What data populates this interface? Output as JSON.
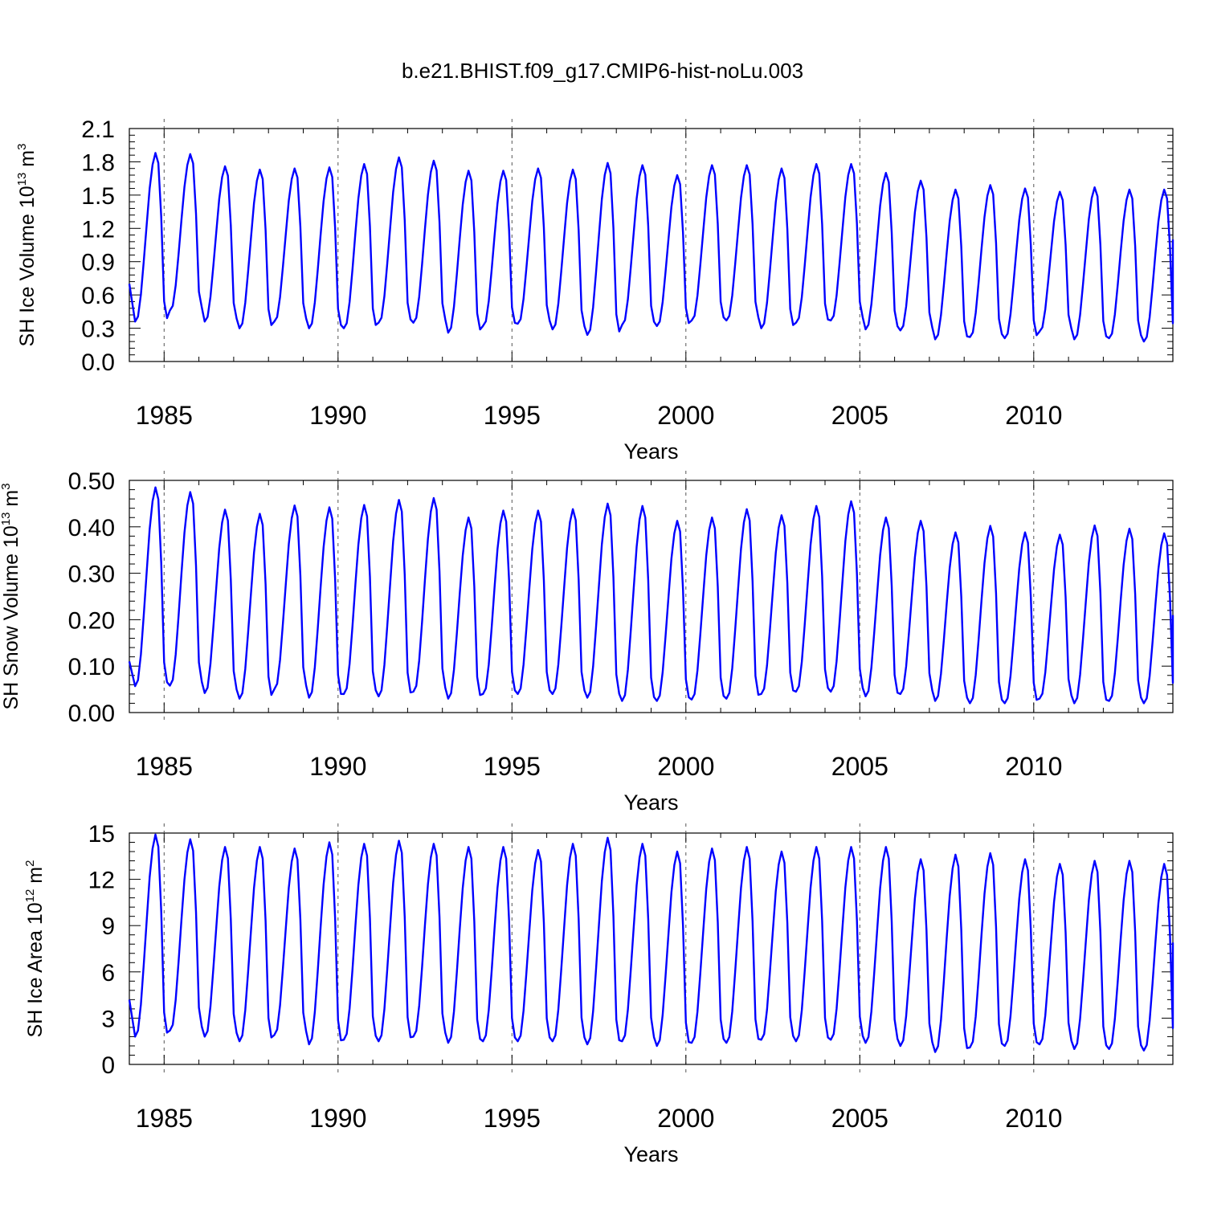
{
  "figure": {
    "title": "b.e21.BHIST.f09_g17.CMIP6-hist-noLu.003"
  },
  "chart_data": [
    {
      "type": "line",
      "title": "",
      "xlabel": "Years",
      "ylabel": "SH Ice Volume 10",
      "ylabel_sup": "13",
      "ylabel_unit": " m",
      "ylabel_unit_sup": "3",
      "xlim": [
        1984.0,
        2014.0
      ],
      "ylim": [
        0.0,
        2.1
      ],
      "xticks": [
        1985,
        1990,
        1995,
        2000,
        2005,
        2010
      ],
      "yticks": [
        "0.0",
        "0.3",
        "0.6",
        "0.9",
        "1.2",
        "1.5",
        "1.8",
        "2.1"
      ],
      "grid": false,
      "x_reference_lines": [
        1985,
        1990,
        1995,
        2000,
        2005,
        2010
      ],
      "series": [
        {
          "color": "#0000ff",
          "start_year": 1984.0,
          "step": 0.08333,
          "annual_max": [
            1.88,
            1.87,
            1.76,
            1.73,
            1.74,
            1.75,
            1.78,
            1.84,
            1.81,
            1.72,
            1.72,
            1.74,
            1.73,
            1.79,
            1.77,
            1.68,
            1.77,
            1.77,
            1.74,
            1.78,
            1.78,
            1.7,
            1.63,
            1.55,
            1.59,
            1.56,
            1.53,
            1.57,
            1.55,
            1.55
          ],
          "annual_min": [
            0.36,
            0.46,
            0.36,
            0.3,
            0.36,
            0.3,
            0.3,
            0.35,
            0.35,
            0.26,
            0.32,
            0.34,
            0.29,
            0.24,
            0.33,
            0.32,
            0.37,
            0.37,
            0.3,
            0.35,
            0.37,
            0.29,
            0.28,
            0.2,
            0.22,
            0.21,
            0.27,
            0.2,
            0.21,
            0.18
          ],
          "start_value": 0.7,
          "end_value": 1.1
        }
      ]
    },
    {
      "type": "line",
      "title": "",
      "xlabel": "Years",
      "ylabel": "SH Snow Volume 10",
      "ylabel_sup": "13",
      "ylabel_unit": " m",
      "ylabel_unit_sup": "3",
      "xlim": [
        1984.0,
        2014.0
      ],
      "ylim": [
        0.0,
        0.5
      ],
      "xticks": [
        1985,
        1990,
        1995,
        2000,
        2005,
        2010
      ],
      "yticks": [
        "0.00",
        "0.10",
        "0.20",
        "0.30",
        "0.40",
        "0.50"
      ],
      "grid": false,
      "x_reference_lines": [
        1985,
        1990,
        1995,
        2000,
        2005,
        2010
      ],
      "series": [
        {
          "color": "#0000ff",
          "start_year": 1984.0,
          "step": 0.08333,
          "annual_max": [
            0.485,
            0.475,
            0.437,
            0.428,
            0.446,
            0.442,
            0.447,
            0.458,
            0.462,
            0.42,
            0.435,
            0.435,
            0.438,
            0.45,
            0.445,
            0.413,
            0.42,
            0.438,
            0.425,
            0.445,
            0.455,
            0.42,
            0.413,
            0.388,
            0.402,
            0.388,
            0.383,
            0.403,
            0.396,
            0.386
          ],
          "annual_min": [
            0.057,
            0.058,
            0.042,
            0.03,
            0.05,
            0.032,
            0.04,
            0.035,
            0.045,
            0.03,
            0.04,
            0.04,
            0.04,
            0.032,
            0.025,
            0.025,
            0.028,
            0.03,
            0.04,
            0.045,
            0.045,
            0.035,
            0.04,
            0.025,
            0.02,
            0.02,
            0.03,
            0.02,
            0.025,
            0.02
          ],
          "start_value": 0.11,
          "end_value": 0.21
        }
      ]
    },
    {
      "type": "line",
      "title": "",
      "xlabel": "Years",
      "ylabel": "SH Ice Area 10",
      "ylabel_sup": "12",
      "ylabel_unit": " m",
      "ylabel_unit_sup": "2",
      "xlim": [
        1984.0,
        2014.0
      ],
      "ylim": [
        0,
        15
      ],
      "xticks": [
        1985,
        1990,
        1995,
        2000,
        2005,
        2010
      ],
      "yticks": [
        "0",
        "3",
        "6",
        "9",
        "12",
        "15"
      ],
      "grid": false,
      "x_reference_lines": [
        1985,
        1990,
        1995,
        2000,
        2005,
        2010
      ],
      "series": [
        {
          "color": "#0000ff",
          "start_year": 1984.0,
          "step": 0.08333,
          "annual_max": [
            14.9,
            14.6,
            14.1,
            14.1,
            14.0,
            14.4,
            14.3,
            14.5,
            14.3,
            14.1,
            14.1,
            13.9,
            14.3,
            14.7,
            14.3,
            13.8,
            14.0,
            14.1,
            13.8,
            14.1,
            14.1,
            14.1,
            13.3,
            13.6,
            13.7,
            13.3,
            13.0,
            13.2,
            13.2,
            13.0
          ],
          "annual_min": [
            1.8,
            2.2,
            1.8,
            1.5,
            1.9,
            1.3,
            1.6,
            1.5,
            1.8,
            1.4,
            1.5,
            1.5,
            1.5,
            1.3,
            1.5,
            1.2,
            1.4,
            1.4,
            1.6,
            1.5,
            1.6,
            1.4,
            1.2,
            0.8,
            1.1,
            1.2,
            1.3,
            1.0,
            1.0,
            0.9
          ],
          "start_value": 4.2,
          "end_value": 7.9
        }
      ]
    }
  ]
}
